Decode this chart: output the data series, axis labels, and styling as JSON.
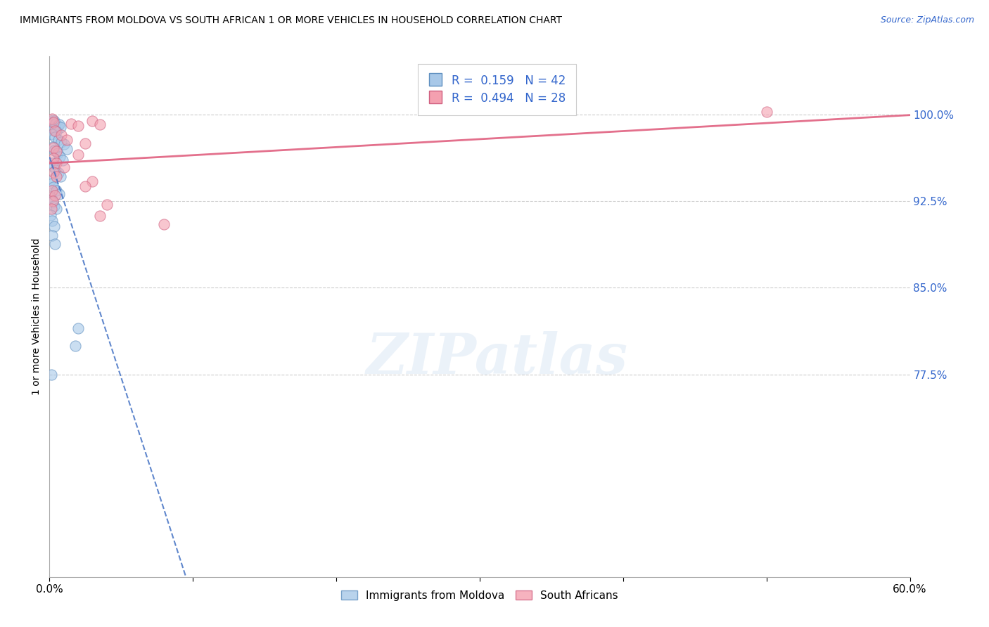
{
  "title": "IMMIGRANTS FROM MOLDOVA VS SOUTH AFRICAN 1 OR MORE VEHICLES IN HOUSEHOLD CORRELATION CHART",
  "source": "Source: ZipAtlas.com",
  "ylabel": "1 or more Vehicles in Household",
  "ytick_values": [
    77.5,
    85.0,
    92.5,
    100.0
  ],
  "xlim": [
    0.0,
    60.0
  ],
  "ylim": [
    60.0,
    105.0
  ],
  "legend_label_1": "Immigrants from Moldova",
  "legend_label_2": "South Africans",
  "R1": "0.159",
  "N1": "42",
  "R2": "0.494",
  "N2": "28",
  "blue_color": "#A8C8E8",
  "pink_color": "#F4A0B0",
  "blue_edge_color": "#6090C0",
  "pink_edge_color": "#D06080",
  "blue_line_color": "#4472C4",
  "pink_line_color": "#E06080",
  "blue_scatter": [
    [
      0.15,
      99.3
    ],
    [
      0.25,
      99.5
    ],
    [
      0.35,
      99.4
    ],
    [
      0.45,
      99.2
    ],
    [
      0.55,
      99.0
    ],
    [
      0.65,
      99.1
    ],
    [
      0.75,
      98.9
    ],
    [
      0.3,
      98.7
    ],
    [
      0.5,
      98.5
    ],
    [
      0.2,
      98.3
    ],
    [
      0.4,
      98.0
    ],
    [
      0.6,
      97.8
    ],
    [
      0.8,
      97.6
    ],
    [
      1.0,
      97.4
    ],
    [
      1.2,
      97.0
    ],
    [
      0.25,
      97.2
    ],
    [
      0.35,
      96.9
    ],
    [
      0.55,
      96.6
    ],
    [
      0.7,
      96.3
    ],
    [
      0.9,
      96.0
    ],
    [
      0.2,
      95.8
    ],
    [
      0.3,
      95.5
    ],
    [
      0.45,
      95.2
    ],
    [
      0.6,
      94.9
    ],
    [
      0.75,
      94.6
    ],
    [
      0.1,
      94.3
    ],
    [
      0.2,
      94.0
    ],
    [
      0.3,
      93.7
    ],
    [
      0.5,
      93.4
    ],
    [
      0.65,
      93.1
    ],
    [
      0.1,
      92.8
    ],
    [
      0.25,
      92.4
    ],
    [
      0.35,
      92.1
    ],
    [
      0.5,
      91.8
    ],
    [
      0.1,
      91.3
    ],
    [
      0.2,
      90.8
    ],
    [
      0.35,
      90.3
    ],
    [
      0.2,
      89.5
    ],
    [
      0.4,
      88.8
    ],
    [
      2.0,
      81.5
    ],
    [
      0.15,
      77.5
    ],
    [
      1.8,
      80.0
    ]
  ],
  "pink_scatter": [
    [
      0.2,
      99.6
    ],
    [
      0.3,
      99.3
    ],
    [
      1.5,
      99.2
    ],
    [
      2.0,
      99.0
    ],
    [
      3.0,
      99.4
    ],
    [
      3.5,
      99.1
    ],
    [
      0.4,
      98.6
    ],
    [
      0.8,
      98.2
    ],
    [
      1.2,
      97.8
    ],
    [
      2.5,
      97.5
    ],
    [
      0.3,
      97.1
    ],
    [
      0.5,
      96.8
    ],
    [
      2.0,
      96.5
    ],
    [
      0.3,
      96.2
    ],
    [
      0.5,
      95.8
    ],
    [
      1.0,
      95.4
    ],
    [
      0.3,
      95.0
    ],
    [
      0.5,
      94.6
    ],
    [
      3.0,
      94.2
    ],
    [
      2.5,
      93.8
    ],
    [
      0.2,
      93.4
    ],
    [
      0.4,
      93.0
    ],
    [
      0.25,
      92.5
    ],
    [
      4.0,
      92.2
    ],
    [
      0.15,
      91.8
    ],
    [
      3.5,
      91.2
    ],
    [
      8.0,
      90.5
    ],
    [
      50.0,
      100.2
    ]
  ],
  "blue_dot_size": 120,
  "pink_dot_size": 120
}
